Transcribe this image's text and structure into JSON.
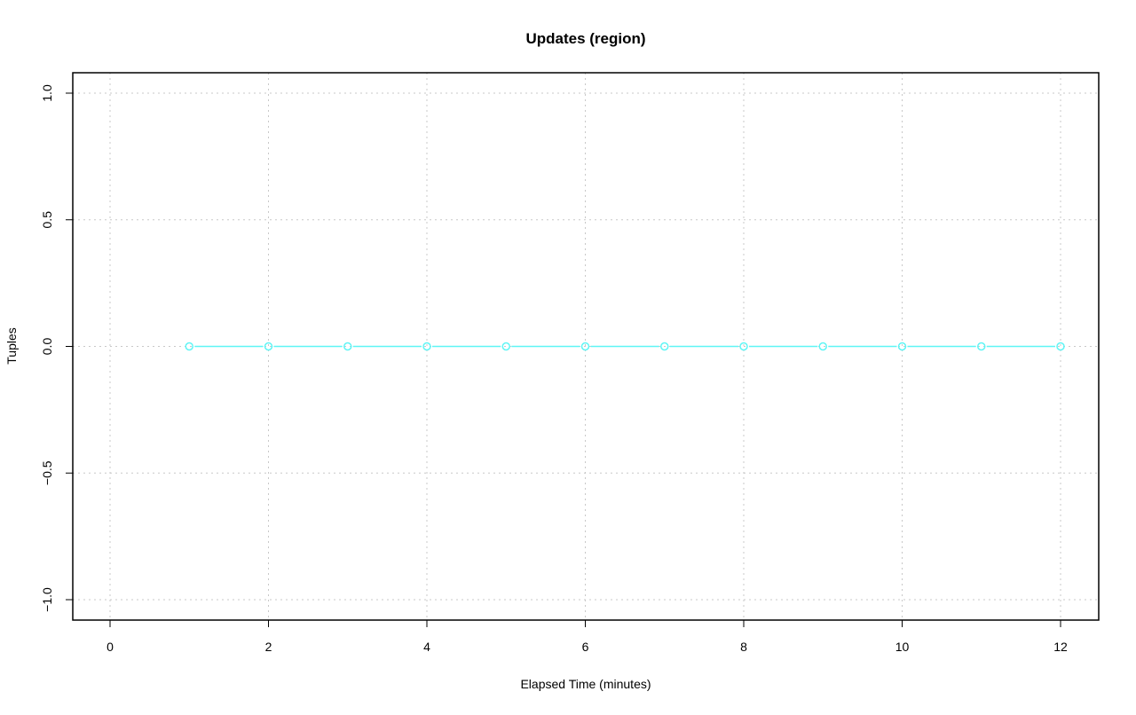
{
  "chart_data": {
    "type": "line",
    "title": "Updates (region)",
    "xlabel": "Elapsed Time (minutes)",
    "ylabel": "Tuples",
    "xlim": [
      0,
      12
    ],
    "ylim": [
      -1,
      1
    ],
    "xticks": [
      "0",
      "2",
      "4",
      "6",
      "8",
      "10",
      "12"
    ],
    "yticks": [
      "-1.0",
      "-0.5",
      "0.0",
      "0.5",
      "1.0"
    ],
    "grid": true,
    "series": [
      {
        "color": "#5ff5f5",
        "marker": "open-circle",
        "x": [
          1,
          2,
          3,
          4,
          5,
          6,
          7,
          8,
          9,
          10,
          11,
          12
        ],
        "y": [
          0,
          0,
          0,
          0,
          0,
          0,
          0,
          0,
          0,
          0,
          0,
          0
        ]
      }
    ]
  }
}
